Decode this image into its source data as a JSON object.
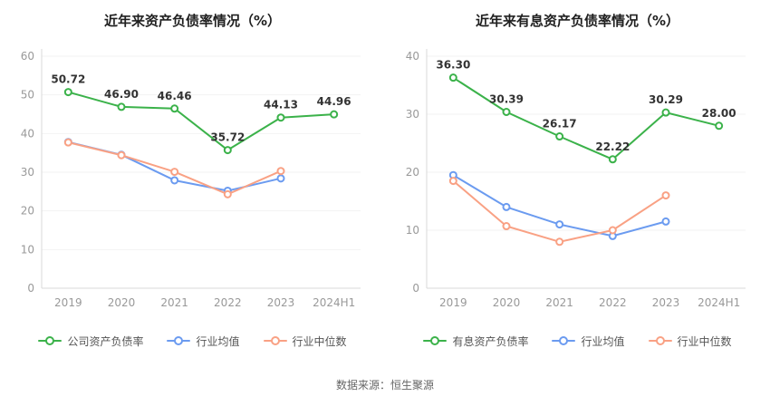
{
  "page": {
    "source_note": "数据来源：恒生聚源"
  },
  "chart_data": [
    {
      "type": "line",
      "title": "近年来资产负债率情况（%）",
      "categories": [
        "2019",
        "2020",
        "2021",
        "2022",
        "2023",
        "2024H1"
      ],
      "ylim": [
        0,
        60
      ],
      "yticks": [
        0,
        10,
        20,
        30,
        40,
        50,
        60
      ],
      "grid": false,
      "legend_position": "bottom",
      "series": [
        {
          "name": "公司资产负债率",
          "color": "#3bb24a",
          "marker": "hollow-circle",
          "values": [
            50.72,
            46.9,
            46.46,
            35.72,
            44.13,
            44.96
          ],
          "labels": [
            "50.72",
            "46.90",
            "46.46",
            "35.72",
            "44.13",
            "44.96"
          ]
        },
        {
          "name": "行业均值",
          "color": "#6b9bf0",
          "marker": "hollow-circle",
          "values": [
            37.8,
            34.5,
            27.9,
            25.2,
            28.4
          ]
        },
        {
          "name": "行业中位数",
          "color": "#f9a184",
          "marker": "hollow-circle",
          "values": [
            37.7,
            34.4,
            30.1,
            24.3,
            30.3
          ]
        }
      ]
    },
    {
      "type": "line",
      "title": "近年来有息资产负债率情况（%）",
      "categories": [
        "2019",
        "2020",
        "2021",
        "2022",
        "2023",
        "2024H1"
      ],
      "ylim": [
        0,
        40
      ],
      "yticks": [
        0,
        10,
        20,
        30,
        40
      ],
      "grid": false,
      "legend_position": "bottom",
      "series": [
        {
          "name": "有息资产负债率",
          "color": "#3bb24a",
          "marker": "hollow-circle",
          "values": [
            36.3,
            30.39,
            26.17,
            22.22,
            30.29,
            28.0
          ],
          "labels": [
            "36.30",
            "30.39",
            "26.17",
            "22.22",
            "30.29",
            "28.00"
          ]
        },
        {
          "name": "行业均值",
          "color": "#6b9bf0",
          "marker": "hollow-circle",
          "values": [
            19.5,
            14.0,
            11.0,
            9.0,
            11.5
          ]
        },
        {
          "name": "行业中位数",
          "color": "#f9a184",
          "marker": "hollow-circle",
          "values": [
            18.5,
            10.7,
            8.0,
            10.0,
            16.0
          ]
        }
      ]
    }
  ]
}
